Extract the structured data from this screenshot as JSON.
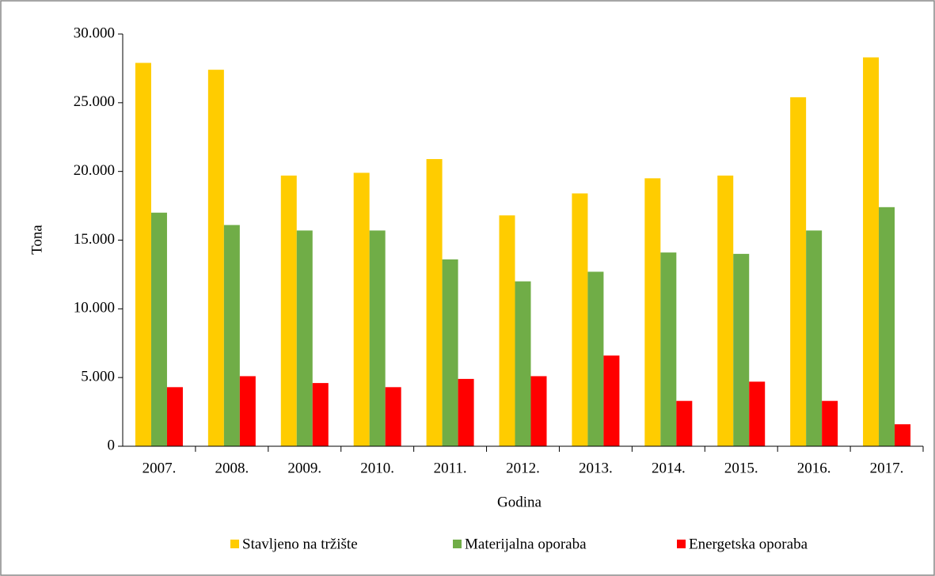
{
  "chart_data": {
    "type": "bar",
    "xlabel": "Godina",
    "ylabel": "Tona",
    "categories": [
      "2007.",
      "2008.",
      "2009.",
      "2010.",
      "2011.",
      "2012.",
      "2013.",
      "2014.",
      "2015.",
      "2016.",
      "2017."
    ],
    "series": [
      {
        "name": "Stavljeno na tržište",
        "color": "#ffcc00",
        "values": [
          27900,
          27400,
          19700,
          19900,
          20900,
          16800,
          18400,
          19500,
          19700,
          25400,
          28300
        ]
      },
      {
        "name": "Materijalna oporaba",
        "color": "#70ad47",
        "values": [
          17000,
          16100,
          15700,
          15700,
          13600,
          12000,
          12700,
          14100,
          14000,
          15700,
          17400
        ]
      },
      {
        "name": "Energetska oporaba",
        "color": "#ff0000",
        "values": [
          4300,
          5100,
          4600,
          4300,
          4900,
          5100,
          6600,
          3300,
          4700,
          3300,
          1600
        ]
      }
    ],
    "ylim": [
      0,
      30000
    ],
    "yticks": [
      0,
      {
        "value": 5000,
        "label": "5.000"
      },
      {
        "value": 10000,
        "label": "10.000"
      },
      {
        "value": 15000,
        "label": "15.000"
      },
      {
        "value": 20000,
        "label": "20.000"
      },
      {
        "value": 25000,
        "label": "25.000"
      },
      {
        "value": 30000,
        "label": "30.000"
      }
    ],
    "grid": false,
    "legend": "bottom"
  }
}
